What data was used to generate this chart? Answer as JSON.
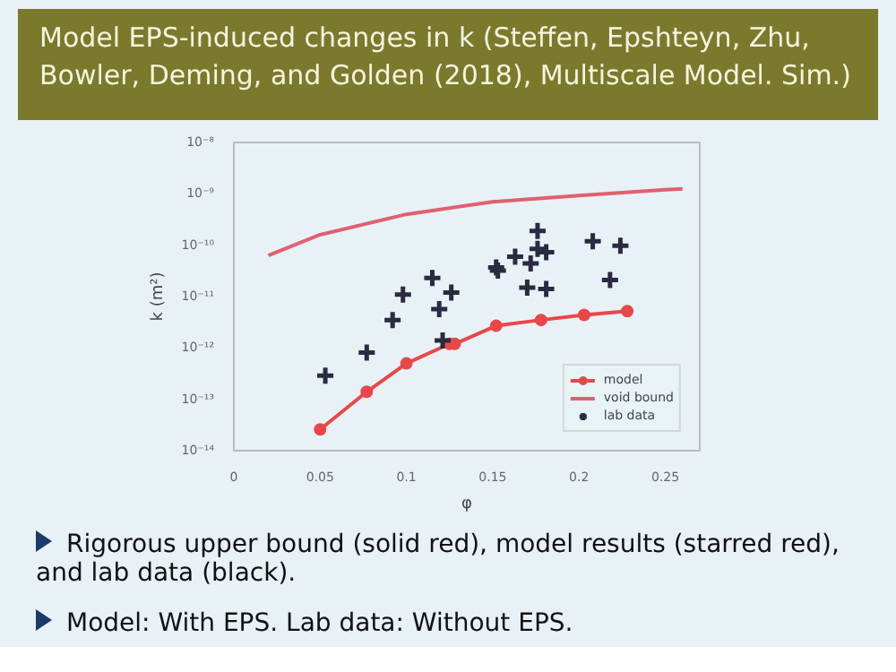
{
  "chart_data": {
    "type": "line",
    "title": "Model EPS-induced changes in k (Steffen, Epshteyn, Zhu, Bowler, Deming, and Golden (2018), Multiscale Model. Sim.)",
    "xlabel": "φ",
    "ylabel": "k (m²)",
    "log": "y",
    "grid": false,
    "legend": "bottom right",
    "xlim": [
      0,
      0.27
    ],
    "xticks": [
      0,
      0.05,
      0.1,
      0.15,
      0.2,
      0.25
    ],
    "ylim": [
      1e-14,
      1e-08
    ],
    "yticks": [
      {
        "value": 1e-14,
        "label": "10⁻¹⁴"
      },
      {
        "value": 1e-13,
        "label": "10⁻¹³"
      },
      {
        "value": 1e-12,
        "label": "10⁻¹²"
      },
      {
        "value": 1e-11,
        "label": "10⁻¹¹"
      },
      {
        "value": 1e-10,
        "label": "10⁻¹⁰"
      },
      {
        "value": 1e-09,
        "label": "10⁻⁹"
      },
      {
        "value": 1e-08,
        "label": "10⁻⁸"
      }
    ],
    "series": [
      {
        "name": "model",
        "marker": "circle",
        "color": "#e8474a",
        "x": [
          0.05,
          0.077,
          0.1,
          0.125,
          0.128,
          0.152,
          0.178,
          0.203,
          0.228
        ],
        "values": [
          2.6e-14,
          1.4e-13,
          5e-13,
          1.2e-12,
          1.2e-12,
          2.7e-12,
          3.5e-12,
          4.4e-12,
          5.2e-12
        ]
      },
      {
        "name": "void bound",
        "marker": "none",
        "color": "#e06070",
        "x": [
          0.02,
          0.05,
          0.1,
          0.15,
          0.2,
          0.25,
          0.26
        ],
        "values": [
          6.3e-11,
          1.6e-10,
          4e-10,
          7e-10,
          9.3e-10,
          1.2e-09,
          1.25e-09
        ]
      },
      {
        "name": "lab data",
        "type": "scatter",
        "marker": "cross",
        "color": "#2a2a40",
        "x": [
          0.053,
          0.077,
          0.092,
          0.098,
          0.115,
          0.119,
          0.126,
          0.121,
          0.152,
          0.153,
          0.163,
          0.172,
          0.176,
          0.176,
          0.17,
          0.181,
          0.181,
          0.208,
          0.218,
          0.224
        ],
        "values": [
          2.9e-13,
          8.1e-13,
          3.5e-12,
          1.1e-11,
          2.3e-11,
          5.7e-12,
          1.2e-11,
          1.4e-12,
          3.7e-11,
          3.2e-11,
          6e-11,
          4.4e-11,
          1.9e-10,
          8.5e-11,
          1.5e-11,
          7.3e-11,
          1.4e-11,
          1.2e-10,
          2.1e-11,
          9.8e-11
        ]
      }
    ],
    "annotations": [
      "Rigorous upper bound (solid red), model results (starred red), and lab data (black).",
      "Model: With EPS. Lab data: Without EPS."
    ]
  }
}
